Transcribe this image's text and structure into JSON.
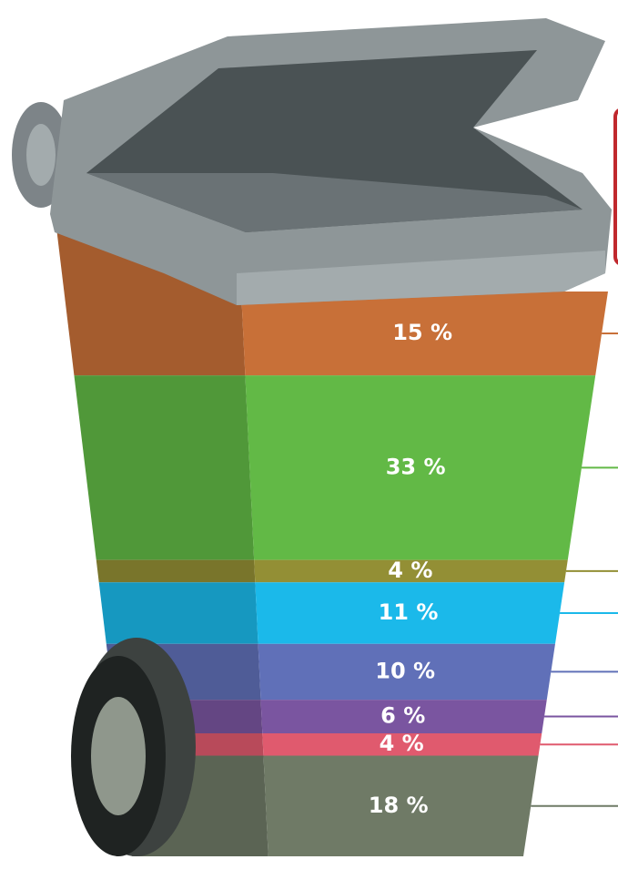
{
  "chart_data": {
    "type": "bin",
    "values": [
      15,
      33,
      4,
      11,
      10,
      6,
      4,
      18
    ],
    "value_labels": [
      "15 %",
      "33 %",
      "4 %",
      "11 %",
      "10 %",
      "6 %",
      "4 %",
      "18 %"
    ],
    "colors": [
      "#c87038",
      "#62b946",
      "#938f35",
      "#1bb9ea",
      "#6070b8",
      "#7a55a0",
      "#e05a6e",
      "#6f7a66"
    ]
  }
}
